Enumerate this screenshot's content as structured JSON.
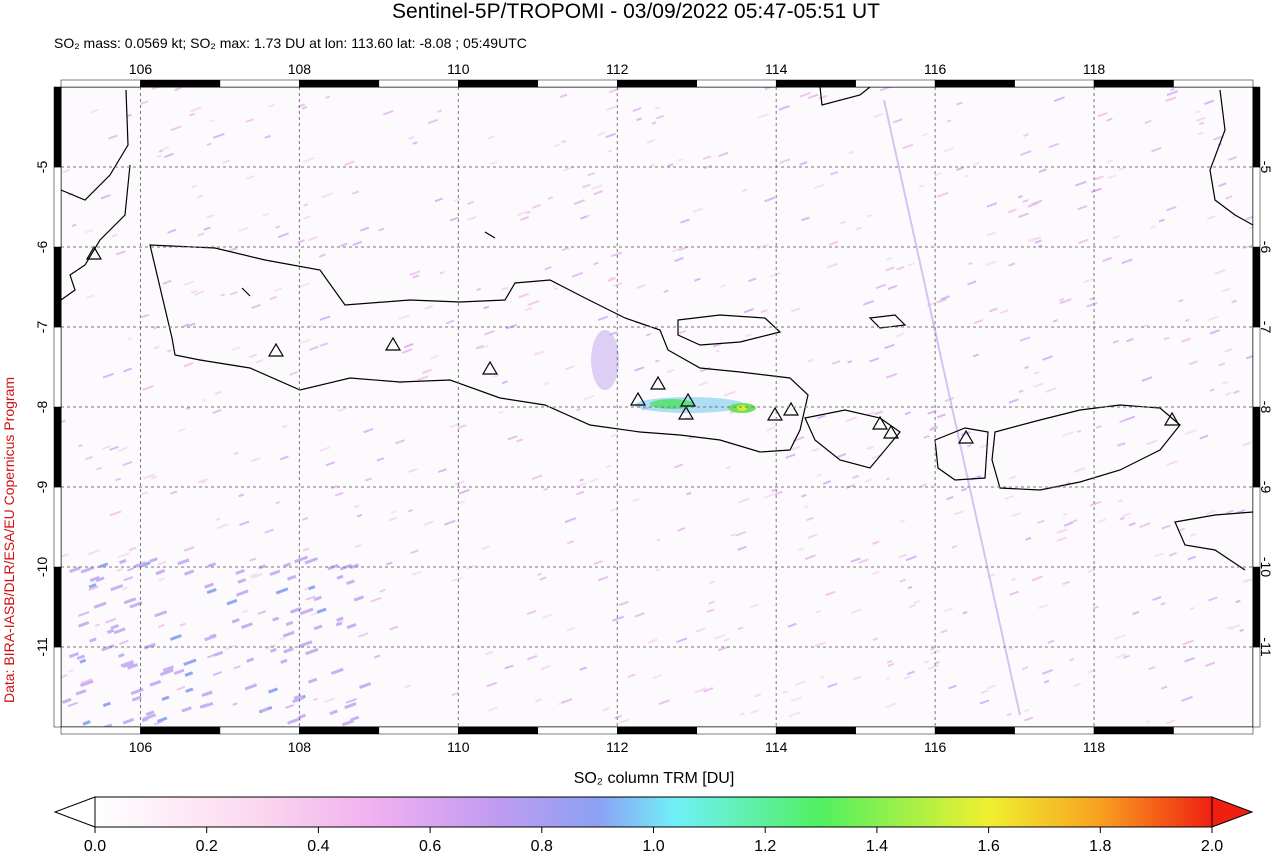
{
  "title": "Sentinel-5P/TROPOMI - 03/09/2022 05:47-05:51 UT",
  "subtitle": "SO₂ mass: 0.0569 kt; SO₂ max: 1.73 DU at lon: 113.60 lat: -8.08 ; 05:49UTC",
  "credit": "Data: BIRA-IASB/DLR/ESA/EU Copernicus Program",
  "map": {
    "xlim": [
      105,
      120
    ],
    "ylim": [
      -12,
      -4
    ],
    "xticks": [
      106,
      108,
      110,
      112,
      114,
      116,
      118
    ],
    "yticks": [
      -5,
      -6,
      -7,
      -8,
      -9,
      -10,
      -11
    ],
    "grid": true
  },
  "colorbar": {
    "label": "SO₂ column TRM [DU]",
    "lim": [
      0,
      2
    ],
    "ticks": [
      {
        "value": 0,
        "label": "0.0"
      },
      {
        "value": 0.2,
        "label": "0.2"
      },
      {
        "value": 0.4,
        "label": "0.4"
      },
      {
        "value": 0.6,
        "label": "0.6"
      },
      {
        "value": 0.8,
        "label": "0.8"
      },
      {
        "value": 1,
        "label": "1.0"
      },
      {
        "value": 1.2,
        "label": "1.2"
      },
      {
        "value": 1.4,
        "label": "1.4"
      },
      {
        "value": 1.6,
        "label": "1.6"
      },
      {
        "value": 1.8,
        "label": "1.8"
      },
      {
        "value": 2,
        "label": "2.0"
      }
    ]
  }
}
